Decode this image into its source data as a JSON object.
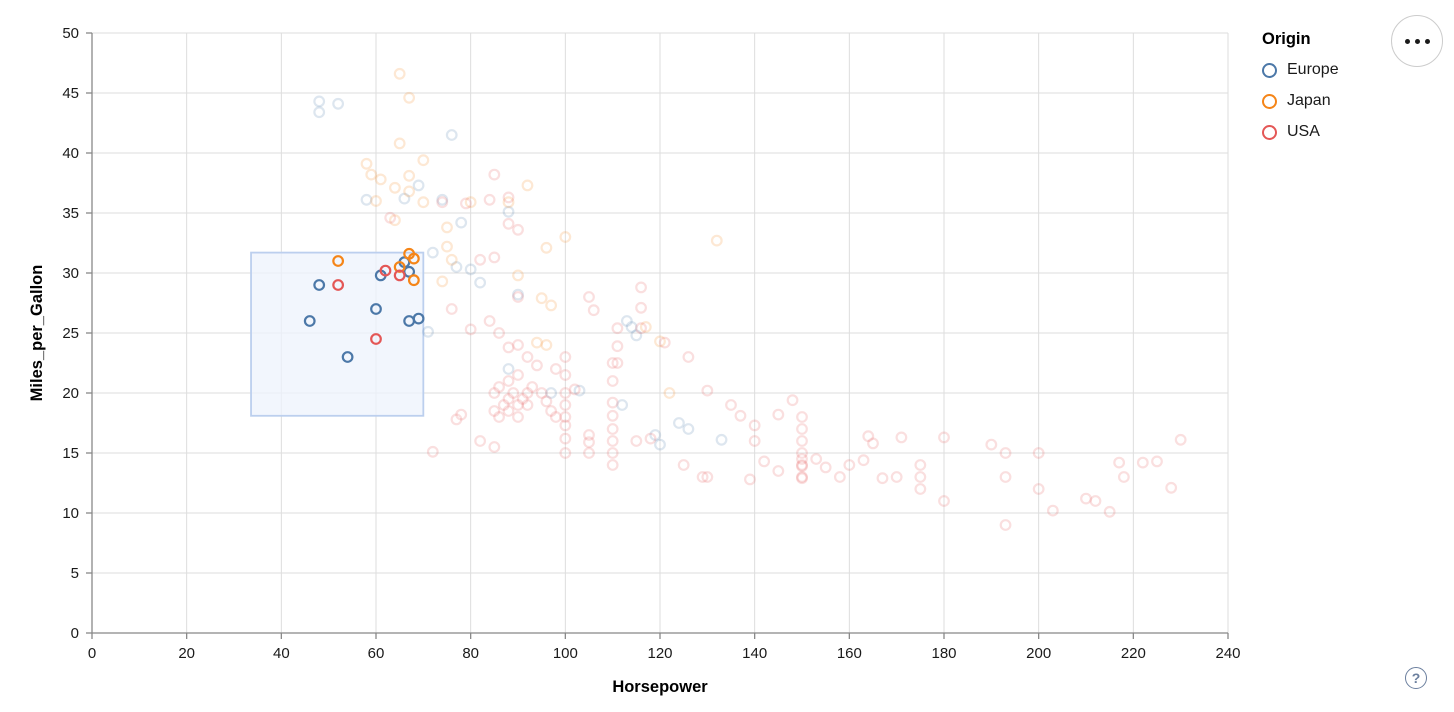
{
  "chart_data": {
    "type": "scatter",
    "title": "",
    "xlabel": "Horsepower",
    "ylabel": "Miles_per_Gallon",
    "xlim": [
      0,
      240
    ],
    "ylim": [
      0,
      50
    ],
    "x_ticks": [
      0,
      20,
      40,
      60,
      80,
      100,
      120,
      140,
      160,
      180,
      200,
      220,
      240
    ],
    "y_ticks": [
      0,
      5,
      10,
      15,
      20,
      25,
      30,
      35,
      40,
      45,
      50
    ],
    "grid": true,
    "legend": {
      "title": "Origin",
      "position": "top-right",
      "entries": [
        {
          "label": "Europe",
          "color": "#4c78a8"
        },
        {
          "label": "Japan",
          "color": "#f58518"
        },
        {
          "label": "USA",
          "color": "#e45756"
        }
      ]
    },
    "brush": {
      "hp_min": 33.6,
      "hp_max": 70.0,
      "mpg_min": 18.1,
      "mpg_max": 31.7,
      "fill": "#edf3fc",
      "stroke": "#bccfee"
    },
    "point_style": {
      "shape": "open-circle",
      "radius": 4.8,
      "stroke_width": 2.2,
      "selected_opacity": 1,
      "unselected_opacity": 0.19
    },
    "series": [
      {
        "name": "Europe",
        "color": "#4c78a8",
        "points": [
          [
            46,
            26
          ],
          [
            48,
            29
          ],
          [
            54,
            23
          ],
          [
            60,
            27
          ],
          [
            61,
            29.8
          ],
          [
            66,
            30.9
          ],
          [
            67,
            30.1
          ],
          [
            67,
            26
          ],
          [
            69,
            26.2
          ],
          [
            48,
            44.3
          ],
          [
            52,
            44.1
          ],
          [
            48,
            43.4
          ],
          [
            76,
            41.5
          ],
          [
            69,
            37.3
          ],
          [
            66,
            36.2
          ],
          [
            74,
            36.1
          ],
          [
            58,
            36.1
          ],
          [
            88,
            35.1
          ],
          [
            78,
            34.2
          ],
          [
            72,
            31.7
          ],
          [
            77,
            30.5
          ],
          [
            80,
            30.3
          ],
          [
            82,
            29.2
          ],
          [
            90,
            28.2
          ],
          [
            71,
            25.1
          ],
          [
            88,
            22
          ],
          [
            97,
            20
          ],
          [
            103,
            20.2
          ],
          [
            113,
            26
          ],
          [
            114,
            25.5
          ],
          [
            115,
            24.8
          ],
          [
            112,
            19
          ],
          [
            119,
            16.5
          ],
          [
            124,
            17.5
          ],
          [
            126,
            17
          ],
          [
            133,
            16.1
          ],
          [
            120,
            15.7
          ]
        ]
      },
      {
        "name": "Japan",
        "color": "#f58518",
        "points": [
          [
            52,
            31
          ],
          [
            65,
            30.5
          ],
          [
            67,
            31.6
          ],
          [
            68,
            31.2
          ],
          [
            68,
            29.4
          ],
          [
            65,
            46.6
          ],
          [
            67,
            44.6
          ],
          [
            65,
            40.8
          ],
          [
            70,
            39.4
          ],
          [
            58,
            39.1
          ],
          [
            59,
            38.2
          ],
          [
            61,
            37.8
          ],
          [
            67,
            38.1
          ],
          [
            64,
            37.1
          ],
          [
            67,
            36.8
          ],
          [
            60,
            36
          ],
          [
            70,
            35.9
          ],
          [
            80,
            35.9
          ],
          [
            88,
            35.9
          ],
          [
            92,
            37.3
          ],
          [
            75,
            33.8
          ],
          [
            64,
            34.4
          ],
          [
            75,
            32.2
          ],
          [
            96,
            32.1
          ],
          [
            100,
            33
          ],
          [
            76,
            31.1
          ],
          [
            74,
            29.3
          ],
          [
            90,
            29.8
          ],
          [
            95,
            27.9
          ],
          [
            97,
            27.3
          ],
          [
            94,
            24.2
          ],
          [
            96,
            24
          ],
          [
            117,
            25.5
          ],
          [
            120,
            24.3
          ],
          [
            122,
            20
          ],
          [
            132,
            32.7
          ]
        ]
      },
      {
        "name": "USA",
        "color": "#e45756",
        "points": [
          [
            52,
            29
          ],
          [
            60,
            24.5
          ],
          [
            62,
            30.2
          ],
          [
            65,
            29.8
          ],
          [
            63,
            34.6
          ],
          [
            74,
            35.9
          ],
          [
            79,
            35.8
          ],
          [
            84,
            36.1
          ],
          [
            85,
            38.2
          ],
          [
            88,
            36.3
          ],
          [
            88,
            34.1
          ],
          [
            90,
            33.6
          ],
          [
            82,
            31.1
          ],
          [
            85,
            31.3
          ],
          [
            76,
            27
          ],
          [
            80,
            25.3
          ],
          [
            84,
            26
          ],
          [
            86,
            25
          ],
          [
            88,
            23.8
          ],
          [
            90,
            28
          ],
          [
            90,
            24
          ],
          [
            92,
            23
          ],
          [
            94,
            22.3
          ],
          [
            98,
            22
          ],
          [
            100,
            23
          ],
          [
            100,
            21.5
          ],
          [
            105,
            28
          ],
          [
            106,
            26.9
          ],
          [
            116,
            28.8
          ],
          [
            116,
            27.1
          ],
          [
            111,
            25.4
          ],
          [
            111,
            23.9
          ],
          [
            111,
            22.5
          ],
          [
            116,
            25.4
          ],
          [
            121,
            24.2
          ],
          [
            126,
            23
          ],
          [
            90,
            21.5
          ],
          [
            88,
            21
          ],
          [
            86,
            20.5
          ],
          [
            85,
            20
          ],
          [
            85,
            18.5
          ],
          [
            86,
            18
          ],
          [
            87,
            19
          ],
          [
            88,
            18.5
          ],
          [
            88,
            19.5
          ],
          [
            89,
            20
          ],
          [
            90,
            19
          ],
          [
            90,
            18
          ],
          [
            91,
            19.5
          ],
          [
            92,
            20
          ],
          [
            92,
            19
          ],
          [
            93,
            20.5
          ],
          [
            95,
            20
          ],
          [
            96,
            19.3
          ],
          [
            97,
            18.5
          ],
          [
            98,
            18
          ],
          [
            100,
            20
          ],
          [
            100,
            19
          ],
          [
            100,
            18
          ],
          [
            100,
            17.3
          ],
          [
            100,
            16.2
          ],
          [
            100,
            15
          ],
          [
            102,
            20.3
          ],
          [
            105,
            16.5
          ],
          [
            105,
            15.9
          ],
          [
            105,
            15
          ],
          [
            110,
            22.5
          ],
          [
            110,
            21
          ],
          [
            110,
            19.2
          ],
          [
            110,
            18.1
          ],
          [
            110,
            17
          ],
          [
            110,
            16
          ],
          [
            110,
            15
          ],
          [
            110,
            14
          ],
          [
            115,
            16
          ],
          [
            118,
            16.2
          ],
          [
            77,
            17.8
          ],
          [
            72,
            15.1
          ],
          [
            78,
            18.2
          ],
          [
            82,
            16
          ],
          [
            85,
            15.5
          ],
          [
            125,
            14
          ],
          [
            129,
            13
          ],
          [
            130,
            13
          ],
          [
            130,
            20.2
          ],
          [
            135,
            19
          ],
          [
            137,
            18.1
          ],
          [
            139,
            12.8
          ],
          [
            140,
            17.3
          ],
          [
            140,
            16
          ],
          [
            142,
            14.3
          ],
          [
            145,
            13.5
          ],
          [
            145,
            18.2
          ],
          [
            148,
            19.4
          ],
          [
            150,
            18
          ],
          [
            150,
            17
          ],
          [
            150,
            16
          ],
          [
            150,
            15
          ],
          [
            150,
            14.5
          ],
          [
            150,
            14
          ],
          [
            150,
            13.9
          ],
          [
            150,
            13
          ],
          [
            150,
            12.9
          ],
          [
            153,
            14.5
          ],
          [
            155,
            13.8
          ],
          [
            158,
            13
          ],
          [
            160,
            14
          ],
          [
            163,
            14.4
          ],
          [
            164,
            16.4
          ],
          [
            165,
            15.8
          ],
          [
            167,
            12.9
          ],
          [
            170,
            13
          ],
          [
            171,
            16.3
          ],
          [
            175,
            14
          ],
          [
            175,
            13
          ],
          [
            175,
            12
          ],
          [
            180,
            16.3
          ],
          [
            180,
            11
          ],
          [
            190,
            15.7
          ],
          [
            193,
            15
          ],
          [
            193,
            13
          ],
          [
            193,
            9
          ],
          [
            200,
            15
          ],
          [
            200,
            12
          ],
          [
            203,
            10.2
          ],
          [
            210,
            11.2
          ],
          [
            212,
            11
          ],
          [
            215,
            10.1
          ],
          [
            217,
            14.2
          ],
          [
            218,
            13
          ],
          [
            222,
            14.2
          ],
          [
            225,
            14.3
          ],
          [
            228,
            12.1
          ],
          [
            230,
            16.1
          ]
        ]
      }
    ]
  },
  "controls": {
    "menu_button": {
      "icon": "ellipsis",
      "dot_count": 3
    },
    "help_button": {
      "label": "?"
    }
  }
}
